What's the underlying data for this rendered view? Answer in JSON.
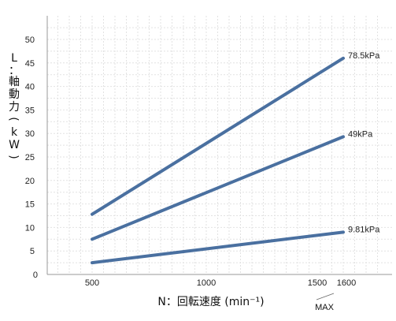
{
  "chart_data": {
    "type": "line",
    "title": "",
    "xlabel": "N：回転速度 (min⁻¹)",
    "ylabel": "L：軸動力(kW)",
    "xlim": [
      0,
      1800
    ],
    "ylim": [
      0,
      55
    ],
    "x_ticks": [
      "500",
      "1000",
      "1500",
      "1600"
    ],
    "x_tick_values": [
      500,
      1000,
      1500,
      1600
    ],
    "y_ticks": [
      "0",
      "5",
      "10",
      "15",
      "20",
      "25",
      "30",
      "35",
      "40",
      "45",
      "50"
    ],
    "y_tick_values": [
      0,
      5,
      10,
      15,
      20,
      25,
      30,
      35,
      40,
      45,
      50
    ],
    "grid": true,
    "series": [
      {
        "name": "78.5kPa",
        "x": [
          500,
          1600
        ],
        "y": [
          12.8,
          46.0
        ]
      },
      {
        "name": "49kPa",
        "x": [
          500,
          1600
        ],
        "y": [
          7.5,
          29.3
        ]
      },
      {
        "name": "9.81kPa",
        "x": [
          500,
          1600
        ],
        "y": [
          2.5,
          9.0
        ]
      }
    ],
    "annotations": [
      "MAX"
    ],
    "colors": {
      "line": "#4a70a0",
      "grid": "#e2e2e2"
    }
  }
}
